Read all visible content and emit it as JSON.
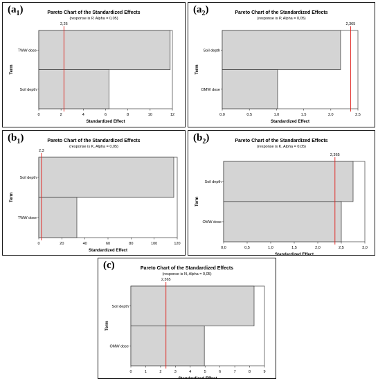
{
  "chart_data": [
    {
      "panel_label": "a",
      "panel_index": "1",
      "type": "bar",
      "title": "Pareto Chart of the Standardized Effects",
      "subtitle": "(response is P, Alpha = 0,05)",
      "categories": [
        "TWW dose",
        "Soil depth"
      ],
      "values": [
        11.8,
        6.3
      ],
      "reference": 2.26,
      "reference_label": "2,26",
      "xlabel": "Standardized Effect",
      "ylabel": "Term",
      "xlim": [
        0,
        12
      ],
      "xticks": [
        "0",
        "2",
        "4",
        "6",
        "8",
        "10",
        "12"
      ]
    },
    {
      "panel_label": "a",
      "panel_index": "2",
      "type": "bar",
      "title": "Pareto Chart of the Standardized Effects",
      "subtitle": "(response is P, Alpha = 0,05)",
      "categories": [
        "Soil depth",
        "OMW dose"
      ],
      "values": [
        2.18,
        1.02
      ],
      "reference": 2.365,
      "reference_label": "2,365",
      "xlabel": "Standardized Effect",
      "ylabel": "Term",
      "xlim": [
        0,
        2.5
      ],
      "xticks": [
        "0.0",
        "0.5",
        "1.0",
        "1.5",
        "2.0",
        "2.5"
      ]
    },
    {
      "panel_label": "b",
      "panel_index": "1",
      "type": "bar",
      "title": "Pareto Chart of the Standardized Effects",
      "subtitle": "(response is K, Alpha = 0,05)",
      "categories": [
        "Soil depth",
        "TWW dose"
      ],
      "values": [
        117,
        33
      ],
      "reference": 2.3,
      "reference_label": "2,3",
      "xlabel": "Standardized Effect",
      "ylabel": "Term",
      "xlim": [
        0,
        120
      ],
      "xticks": [
        "0",
        "20",
        "40",
        "60",
        "80",
        "100",
        "120"
      ]
    },
    {
      "panel_label": "b",
      "panel_index": "2",
      "type": "bar",
      "title": "Pareto Chart of the Standardized Effects",
      "subtitle": "(response is K, Alpha = 0,05)",
      "categories": [
        "Soil depth",
        "OMW dose"
      ],
      "values": [
        2.75,
        2.5
      ],
      "reference": 2.365,
      "reference_label": "2,365",
      "xlabel": "Standardized Effect",
      "ylabel": "Term",
      "xlim": [
        0,
        3
      ],
      "xticks": [
        "0,0",
        "0,5",
        "1,0",
        "1,5",
        "2,0",
        "2,5",
        "3,0"
      ]
    },
    {
      "panel_label": "c",
      "panel_index": "",
      "type": "bar",
      "title": "Pareto Chart of the Standardized Effects",
      "subtitle": "(response is N, Alpha = 0,05)",
      "categories": [
        "Soil depth",
        "OMW dose"
      ],
      "values": [
        8.3,
        4.95
      ],
      "reference": 2.365,
      "reference_label": "2,365",
      "xlabel": "Standardized Effect",
      "ylabel": "Term",
      "xlim": [
        0,
        9
      ],
      "xticks": [
        "0",
        "1",
        "2",
        "3",
        "4",
        "5",
        "6",
        "7",
        "8",
        "9"
      ]
    }
  ]
}
